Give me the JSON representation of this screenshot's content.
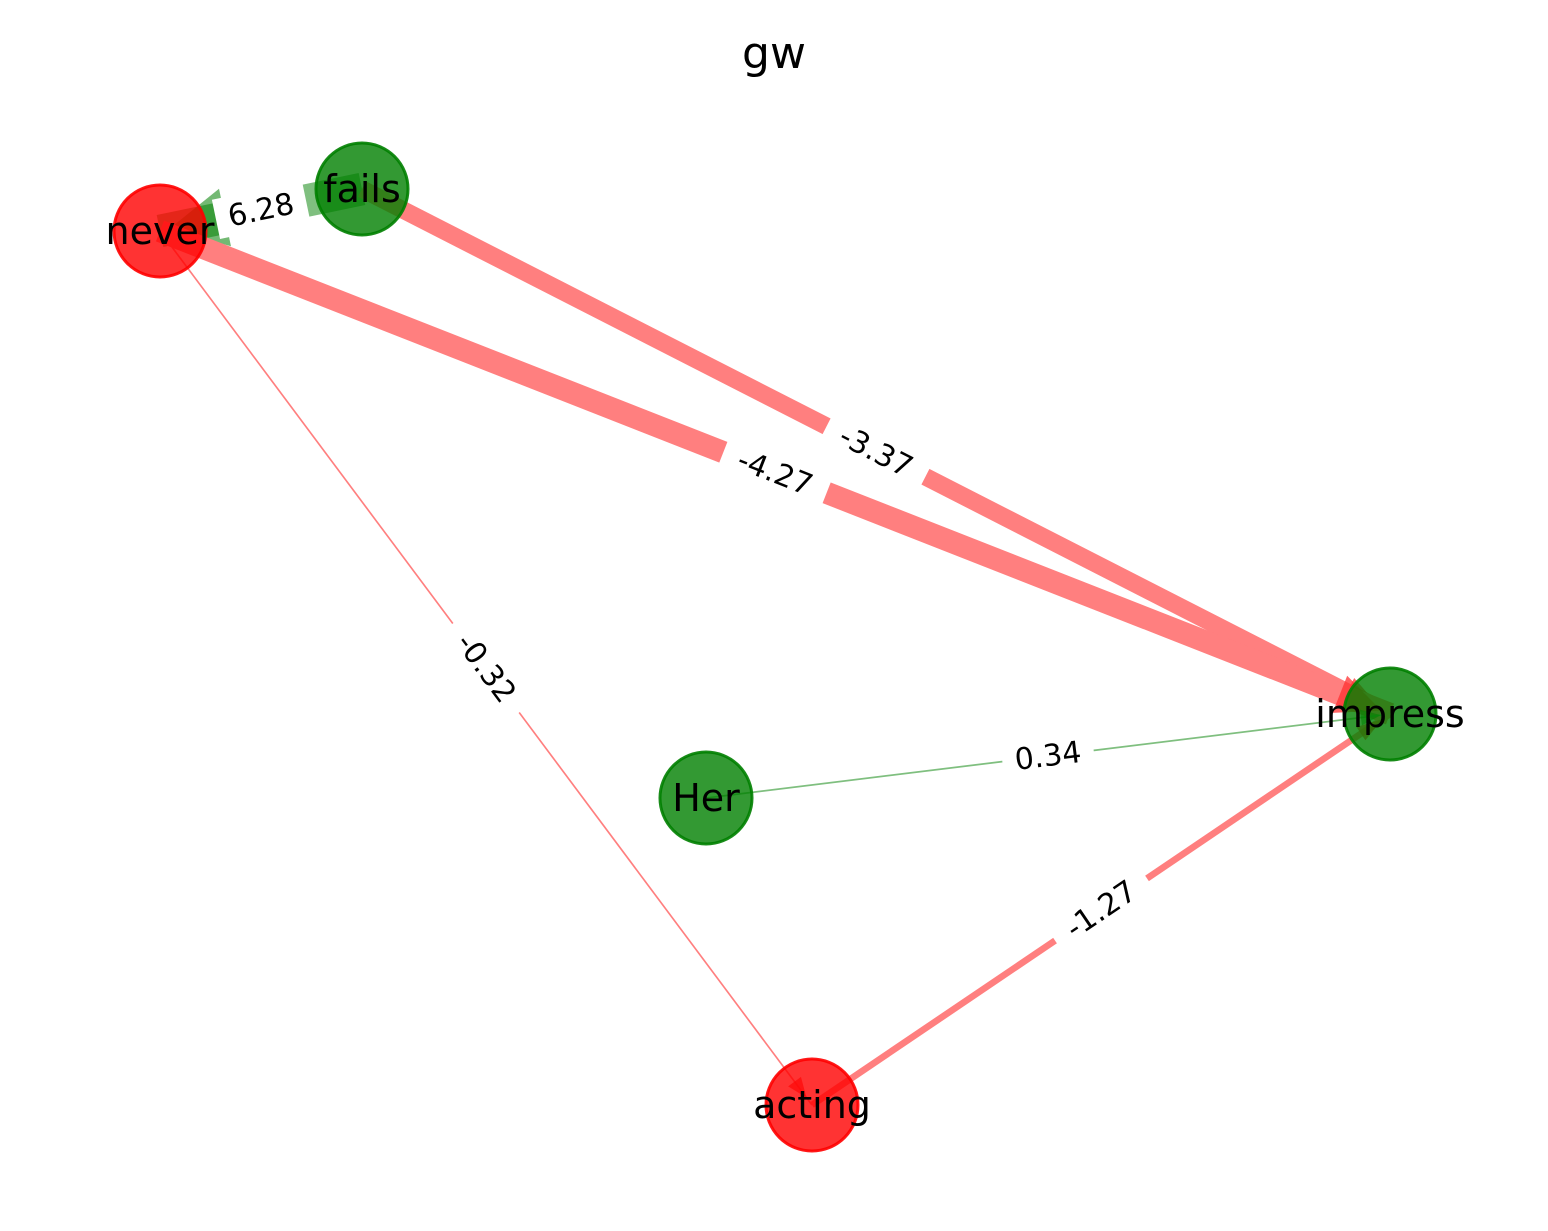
{
  "title": "gw",
  "colors": {
    "positive": "#008000",
    "negative": "#ff0000",
    "positive_edge": "#7fbf7f",
    "negative_edge": "#ff7f7f"
  },
  "nodes": [
    {
      "id": "never",
      "label": "never",
      "color": "#ff0000"
    },
    {
      "id": "fails",
      "label": "fails",
      "color": "#008000"
    },
    {
      "id": "impress",
      "label": "impress",
      "color": "#008000"
    },
    {
      "id": "Her",
      "label": "Her",
      "color": "#008000"
    },
    {
      "id": "acting",
      "label": "acting",
      "color": "#ff0000"
    }
  ],
  "edges": [
    {
      "source": "fails",
      "target": "never",
      "weight": 6.28,
      "label": "6.28"
    },
    {
      "source": "fails",
      "target": "impress",
      "weight": -3.37,
      "label": "-3.37"
    },
    {
      "source": "never",
      "target": "impress",
      "weight": -4.27,
      "label": "-4.27"
    },
    {
      "source": "never",
      "target": "acting",
      "weight": -0.32,
      "label": "-0.32"
    },
    {
      "source": "Her",
      "target": "impress",
      "weight": 0.34,
      "label": "0.34"
    },
    {
      "source": "acting",
      "target": "impress",
      "weight": -1.27,
      "label": "-1.27"
    }
  ]
}
